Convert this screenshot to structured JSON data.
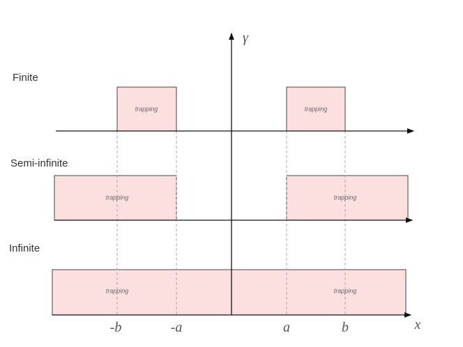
{
  "rows": [
    {
      "label": "Finite",
      "boxes": [
        {
          "label": "trapping"
        },
        {
          "label": "trapping"
        }
      ]
    },
    {
      "label": "Semi-infinite",
      "boxes": [
        {
          "label": "trapping"
        },
        {
          "label": "trapping"
        }
      ]
    },
    {
      "label": "Infinite",
      "boxes": [
        {
          "label": "trapping"
        },
        {
          "label": "trapping"
        }
      ]
    }
  ],
  "axes": {
    "y_label": "γ",
    "x_label": "x"
  },
  "ticks": [
    "-b",
    "-a",
    "a",
    "b"
  ]
}
